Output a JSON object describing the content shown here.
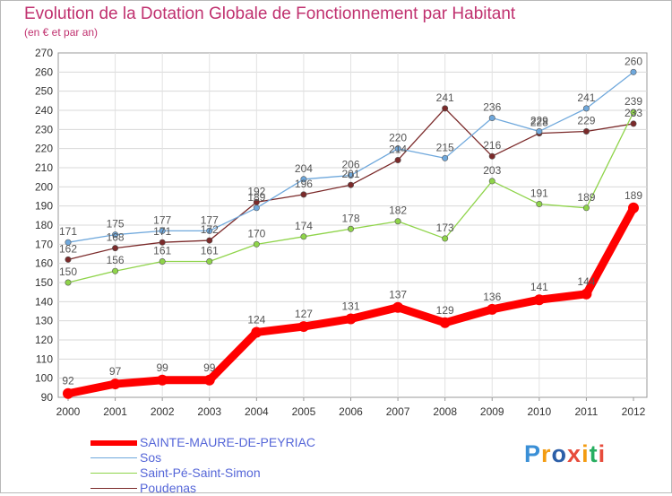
{
  "chart_data": {
    "type": "line",
    "title": "Evolution de la Dotation Globale de Fonctionnement par Habitant",
    "subtitle": "(en € et par an)",
    "xlabel": "",
    "ylabel": "",
    "ylim": [
      90,
      270
    ],
    "yticks": [
      90,
      100,
      110,
      120,
      130,
      140,
      150,
      160,
      170,
      180,
      190,
      200,
      210,
      220,
      230,
      240,
      250,
      260,
      270
    ],
    "grid": true,
    "legend_position": "bottom-left",
    "categories": [
      "2000",
      "2001",
      "2002",
      "2003",
      "2004",
      "2005",
      "2006",
      "2007",
      "2008",
      "2009",
      "2010",
      "2011",
      "2012"
    ],
    "series": [
      {
        "name": "SAINTE-MAURE-DE-PEYRIAC",
        "color": "#ff0000",
        "values": [
          92,
          97,
          99,
          99,
          124,
          127,
          131,
          137,
          129,
          136,
          141,
          144,
          189
        ]
      },
      {
        "name": "Sos",
        "color": "#6fa8dc",
        "values": [
          171,
          175,
          177,
          177,
          189,
          204,
          206,
          220,
          215,
          236,
          229,
          241,
          260
        ]
      },
      {
        "name": "Saint-Pé-Saint-Simon",
        "color": "#8fd44a",
        "values": [
          150,
          156,
          161,
          161,
          170,
          174,
          178,
          182,
          173,
          203,
          191,
          189,
          239
        ]
      },
      {
        "name": "Poudenas",
        "color": "#7b2a2a",
        "values": [
          162,
          168,
          171,
          172,
          192,
          196,
          201,
          214,
          241,
          216,
          228,
          229,
          233
        ]
      }
    ]
  },
  "logo": {
    "letters": [
      "P",
      "r",
      "o",
      "x",
      "i",
      "t",
      "i"
    ]
  }
}
